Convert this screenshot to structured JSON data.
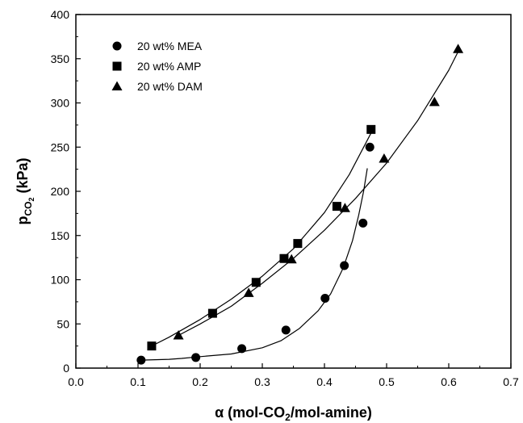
{
  "chart_data": {
    "type": "scatter",
    "title": "",
    "xlabel": {
      "prefix": "α (mol-CO",
      "sub": "2",
      "suffix": "/mol-amine)"
    },
    "ylabel": {
      "prefix": "p",
      "sub": "CO",
      "subsub": "2",
      "suffix": " (kPa)"
    },
    "xlim": [
      0.0,
      0.7
    ],
    "ylim": [
      0,
      400
    ],
    "xticks": [
      0.0,
      0.1,
      0.2,
      0.3,
      0.4,
      0.5,
      0.6,
      0.7
    ],
    "xtick_labels": [
      "0.0",
      "0.1",
      "0.2",
      "0.3",
      "0.4",
      "0.5",
      "0.6",
      "0.7"
    ],
    "yticks": [
      0,
      50,
      100,
      150,
      200,
      250,
      300,
      350,
      400
    ],
    "ytick_labels": [
      "0",
      "50",
      "100",
      "150",
      "200",
      "250",
      "300",
      "350",
      "400"
    ],
    "grid": false,
    "legend": "top-left",
    "series": [
      {
        "name": "20 wt% MEA",
        "marker": "circle",
        "x": [
          0.105,
          0.193,
          0.267,
          0.338,
          0.401,
          0.432,
          0.462,
          0.473
        ],
        "y": [
          9,
          12,
          22,
          43,
          79,
          116,
          164,
          250
        ],
        "fit_x": [
          0.105,
          0.15,
          0.17,
          0.2,
          0.25,
          0.3,
          0.33,
          0.36,
          0.39,
          0.41,
          0.43,
          0.445,
          0.455,
          0.463,
          0.469
        ],
        "fit_y": [
          9,
          10,
          11,
          13,
          16,
          23,
          31,
          45,
          65,
          84,
          113,
          144,
          173,
          200,
          226
        ]
      },
      {
        "name": "20 wt% AMP",
        "marker": "square",
        "x": [
          0.122,
          0.22,
          0.29,
          0.335,
          0.357,
          0.42,
          0.475
        ],
        "y": [
          25,
          62,
          97,
          124,
          141,
          183,
          270
        ],
        "fit_x": [
          0.122,
          0.15,
          0.2,
          0.25,
          0.3,
          0.35,
          0.4,
          0.44,
          0.475
        ],
        "fit_y": [
          25,
          35,
          55,
          78,
          104,
          135,
          176,
          219,
          266
        ]
      },
      {
        "name": "20 wt% DAM",
        "marker": "triangle",
        "x": [
          0.165,
          0.278,
          0.347,
          0.433,
          0.496,
          0.577,
          0.615
        ],
        "y": [
          37,
          85,
          123,
          181,
          237,
          301,
          361
        ],
        "fit_x": [
          0.165,
          0.2,
          0.25,
          0.3,
          0.35,
          0.4,
          0.45,
          0.5,
          0.55,
          0.6,
          0.615
        ],
        "fit_y": [
          37,
          50,
          70,
          96,
          124,
          156,
          192,
          232,
          280,
          337,
          358
        ]
      }
    ]
  }
}
